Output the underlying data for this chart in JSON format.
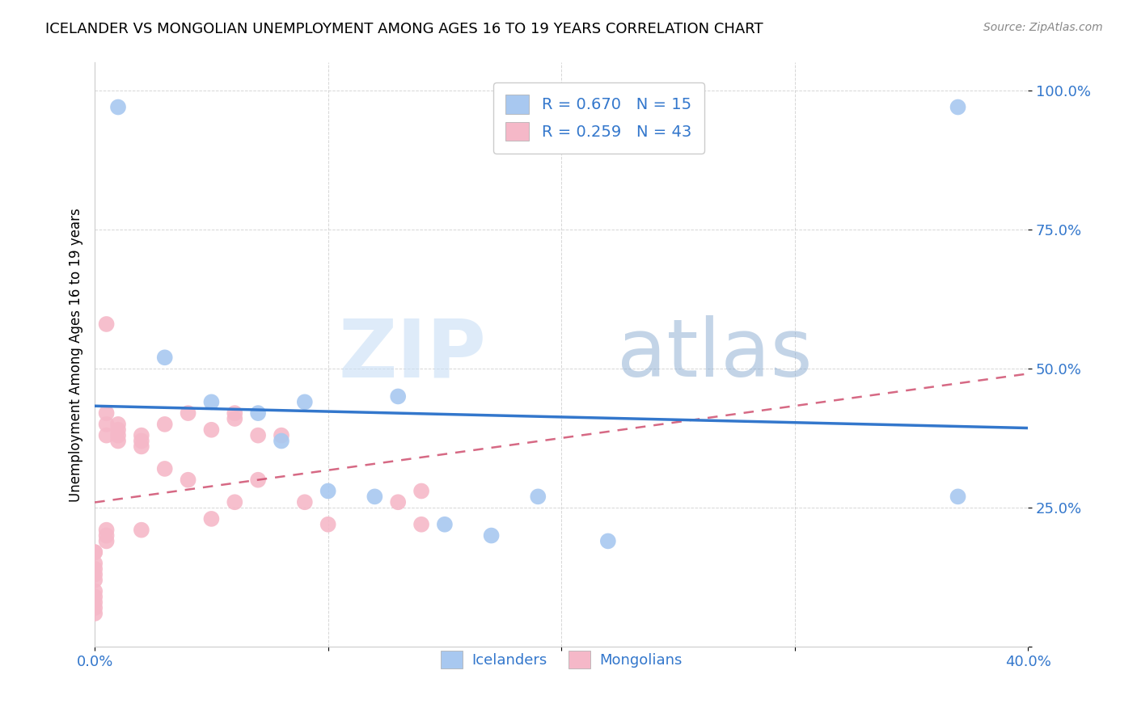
{
  "title": "ICELANDER VS MONGOLIAN UNEMPLOYMENT AMONG AGES 16 TO 19 YEARS CORRELATION CHART",
  "source": "Source: ZipAtlas.com",
  "ylabel": "Unemployment Among Ages 16 to 19 years",
  "xlim": [
    0.0,
    0.4
  ],
  "ylim": [
    0.0,
    1.05
  ],
  "icelander_color": "#a8c8f0",
  "mongolian_color": "#f5b8c8",
  "icelander_line_color": "#3377cc",
  "mongolian_line_color": "#cc4466",
  "watermark_zip": "ZIP",
  "watermark_atlas": "atlas",
  "icelander_x": [
    0.01,
    0.03,
    0.05,
    0.07,
    0.08,
    0.09,
    0.1,
    0.12,
    0.13,
    0.15,
    0.17,
    0.19,
    0.22,
    0.37,
    0.37
  ],
  "icelander_y": [
    0.97,
    0.52,
    0.44,
    0.42,
    0.37,
    0.44,
    0.28,
    0.27,
    0.45,
    0.22,
    0.2,
    0.27,
    0.19,
    0.97,
    0.27
  ],
  "mongolian_x": [
    0.0,
    0.0,
    0.0,
    0.0,
    0.0,
    0.0,
    0.0,
    0.0,
    0.0,
    0.0,
    0.0,
    0.005,
    0.005,
    0.005,
    0.005,
    0.005,
    0.005,
    0.005,
    0.01,
    0.01,
    0.01,
    0.01,
    0.02,
    0.02,
    0.02,
    0.02,
    0.03,
    0.03,
    0.04,
    0.04,
    0.05,
    0.05,
    0.06,
    0.06,
    0.06,
    0.07,
    0.07,
    0.08,
    0.09,
    0.1,
    0.13,
    0.14,
    0.14
  ],
  "mongolian_y": [
    0.17,
    0.17,
    0.15,
    0.14,
    0.13,
    0.12,
    0.1,
    0.09,
    0.08,
    0.07,
    0.06,
    0.58,
    0.42,
    0.4,
    0.38,
    0.21,
    0.2,
    0.19,
    0.4,
    0.39,
    0.38,
    0.37,
    0.38,
    0.37,
    0.36,
    0.21,
    0.4,
    0.32,
    0.42,
    0.3,
    0.39,
    0.23,
    0.42,
    0.41,
    0.26,
    0.38,
    0.3,
    0.38,
    0.26,
    0.22,
    0.26,
    0.22,
    0.28
  ]
}
